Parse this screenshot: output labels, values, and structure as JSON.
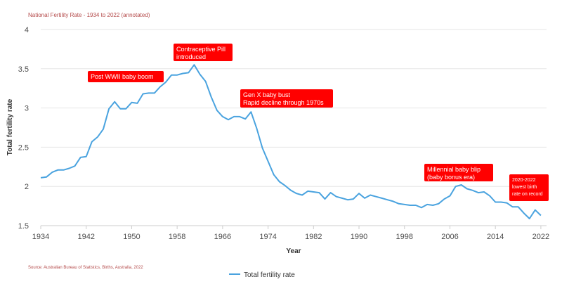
{
  "colors": {
    "line": "#4aa3df",
    "annotation_bg": "#ff0000",
    "grid": "#e6e6e6",
    "subtitle": "#b44a4a"
  },
  "chart_data": {
    "type": "line",
    "subtitle": "National Fertility Rate - 1934 to 2022 (annotated)",
    "source": "Source: Australian Bureau of Statistics, Births, Australia, 2022",
    "xlabel": "Year",
    "ylabel": "Total fertility rate",
    "ylim": [
      1.5,
      4
    ],
    "xlim": [
      1934,
      2023
    ],
    "x_ticks": [
      "1934",
      "1942",
      "1950",
      "1958",
      "1966",
      "1974",
      "1982",
      "1990",
      "1998",
      "2006",
      "2014",
      "2022"
    ],
    "y_ticks": [
      "1.5",
      "2",
      "2.5",
      "3",
      "3.5",
      "4"
    ],
    "grid": "horizontal",
    "legend": {
      "position": "bottom",
      "entries": [
        "Total fertility rate"
      ]
    },
    "series": [
      {
        "name": "Total fertility rate",
        "x": [
          1934,
          1935,
          1936,
          1937,
          1938,
          1939,
          1940,
          1941,
          1942,
          1943,
          1944,
          1945,
          1946,
          1947,
          1948,
          1949,
          1950,
          1951,
          1952,
          1953,
          1954,
          1955,
          1956,
          1957,
          1958,
          1959,
          1960,
          1961,
          1962,
          1963,
          1964,
          1965,
          1966,
          1967,
          1968,
          1969,
          1970,
          1971,
          1972,
          1973,
          1974,
          1975,
          1976,
          1977,
          1978,
          1979,
          1980,
          1981,
          1982,
          1983,
          1984,
          1985,
          1986,
          1987,
          1988,
          1989,
          1990,
          1991,
          1992,
          1993,
          1994,
          1995,
          1996,
          1997,
          1998,
          1999,
          2000,
          2001,
          2002,
          2003,
          2004,
          2005,
          2006,
          2007,
          2008,
          2009,
          2010,
          2011,
          2012,
          2013,
          2014,
          2015,
          2016,
          2017,
          2018,
          2019,
          2020,
          2021,
          2022
        ],
        "values": [
          2.11,
          2.12,
          2.18,
          2.21,
          2.21,
          2.23,
          2.26,
          2.37,
          2.38,
          2.57,
          2.63,
          2.73,
          2.99,
          3.08,
          2.99,
          2.99,
          3.07,
          3.06,
          3.18,
          3.19,
          3.19,
          3.27,
          3.33,
          3.42,
          3.42,
          3.44,
          3.45,
          3.55,
          3.43,
          3.34,
          3.14,
          2.97,
          2.89,
          2.85,
          2.89,
          2.89,
          2.86,
          2.95,
          2.74,
          2.49,
          2.32,
          2.15,
          2.06,
          2.01,
          1.95,
          1.91,
          1.89,
          1.94,
          1.93,
          1.92,
          1.84,
          1.92,
          1.87,
          1.85,
          1.83,
          1.84,
          1.91,
          1.85,
          1.89,
          1.87,
          1.85,
          1.83,
          1.81,
          1.78,
          1.77,
          1.76,
          1.76,
          1.73,
          1.77,
          1.76,
          1.78,
          1.84,
          1.88,
          2.0,
          2.02,
          1.97,
          1.95,
          1.92,
          1.93,
          1.88,
          1.8,
          1.8,
          1.79,
          1.74,
          1.74,
          1.66,
          1.59,
          1.7,
          1.63
        ]
      }
    ],
    "annotations": [
      {
        "lines": [
          "Post WWII baby boom"
        ],
        "size": "normal"
      },
      {
        "lines": [
          "Contraceptive Pill",
          "introduced"
        ],
        "size": "normal"
      },
      {
        "lines": [
          "Gen X baby bust",
          "Rapid decline through 1970s"
        ],
        "size": "normal"
      },
      {
        "lines": [
          "Millennial baby blip",
          "(baby bonus era)"
        ],
        "size": "normal"
      },
      {
        "lines": [
          "2020-2022",
          "lowest birth",
          "rate on record"
        ],
        "size": "small"
      }
    ]
  }
}
